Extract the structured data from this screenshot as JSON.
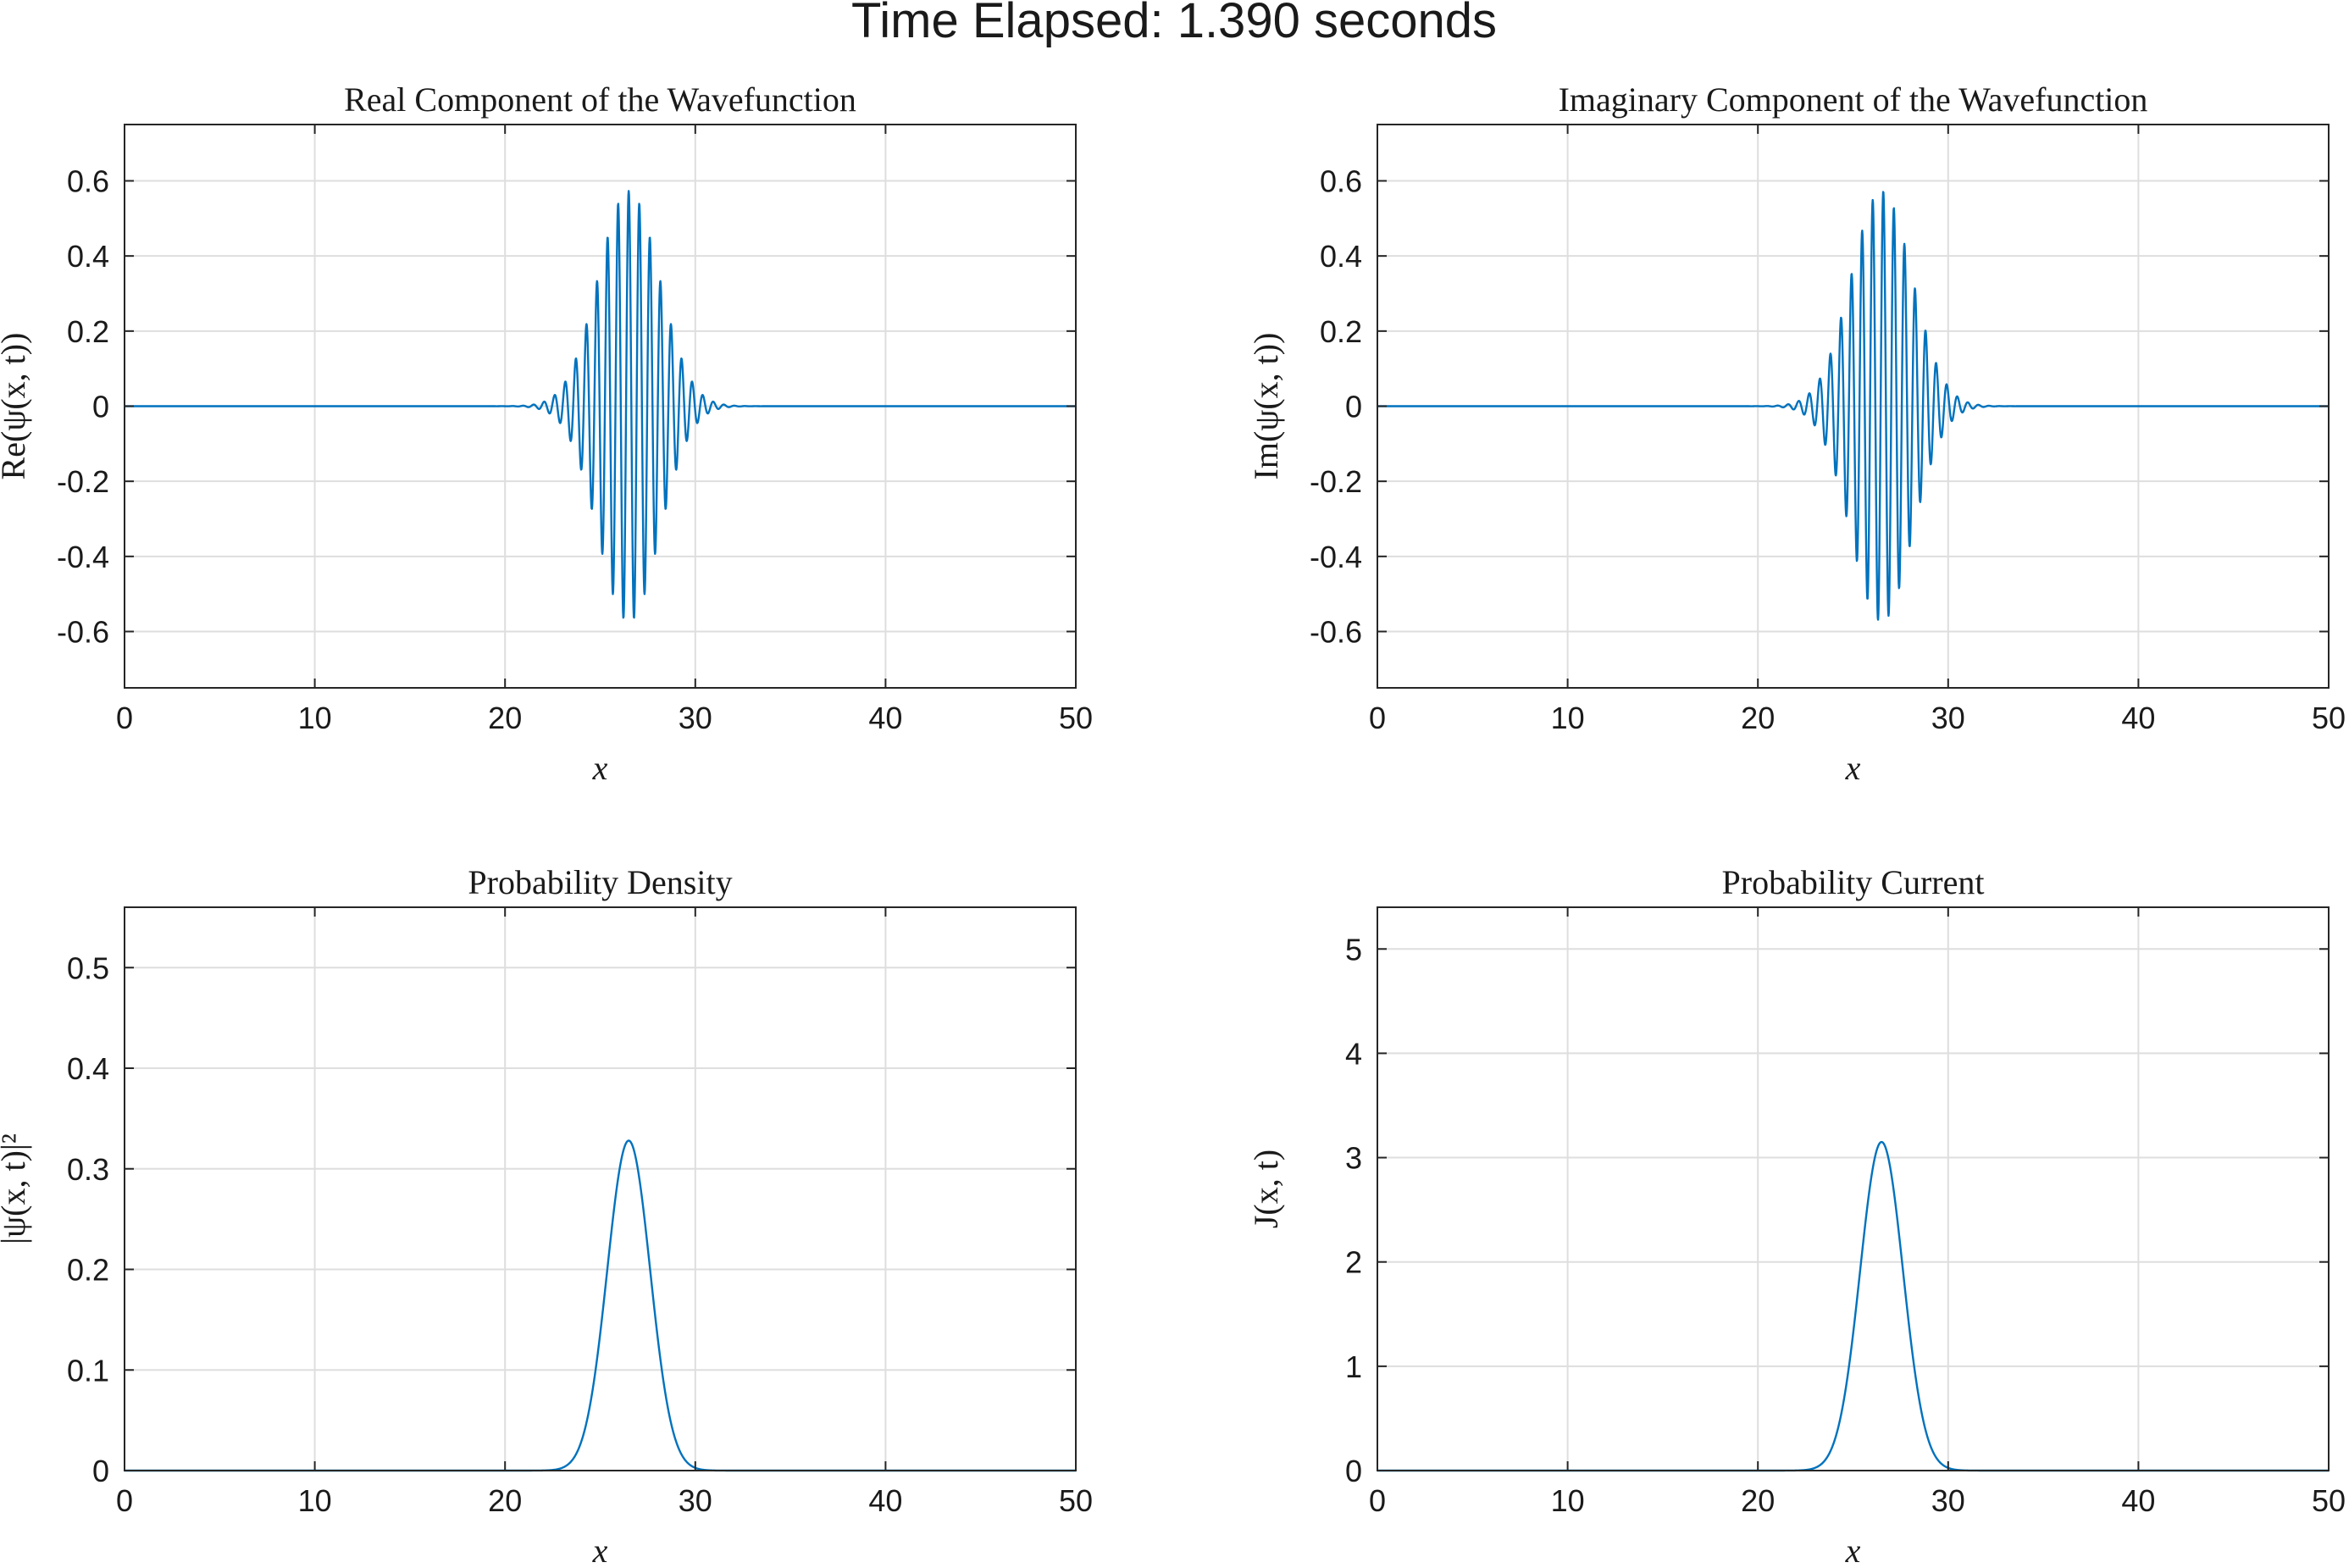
{
  "figure": {
    "title": "Time Elapsed: 1.390 seconds"
  },
  "chart_data": [
    {
      "id": "real",
      "type": "line",
      "title": "Real Component of the Wavefunction",
      "xlabel": "x",
      "ylabel": "Re(ψ(x, t))",
      "xlim": [
        0,
        50
      ],
      "ylim": [
        -0.75,
        0.75
      ],
      "xticks": [
        0,
        10,
        20,
        30,
        40,
        50
      ],
      "yticks": [
        -0.6,
        -0.4,
        -0.2,
        0,
        0.2,
        0.4,
        0.6
      ],
      "ytick_labels": [
        "-0.6",
        "-0.4",
        "-0.2",
        "0",
        "0.2",
        "0.4",
        "0.6"
      ],
      "grid": true,
      "series": [
        {
          "kind": "wavepacket-real",
          "center": 26.5,
          "width": 1.6,
          "amplitude": 0.573,
          "wavenumber": 11.3,
          "phase": 0.0,
          "color": "#0072bd"
        }
      ]
    },
    {
      "id": "imag",
      "type": "line",
      "title": "Imaginary Component of the Wavefunction",
      "xlabel": "x",
      "ylabel": "Im(ψ(x, t))",
      "xlim": [
        0,
        50
      ],
      "ylim": [
        -0.75,
        0.75
      ],
      "xticks": [
        0,
        10,
        20,
        30,
        40,
        50
      ],
      "yticks": [
        -0.6,
        -0.4,
        -0.2,
        0,
        0.2,
        0.4,
        0.6
      ],
      "ytick_labels": [
        "-0.6",
        "-0.4",
        "-0.2",
        "0",
        "0.2",
        "0.4",
        "0.6"
      ],
      "grid": true,
      "series": [
        {
          "kind": "wavepacket-imag",
          "center": 26.5,
          "width": 1.6,
          "amplitude": 0.573,
          "wavenumber": 11.3,
          "phase": 0.0,
          "color": "#0072bd"
        }
      ]
    },
    {
      "id": "density",
      "type": "line",
      "title": "Probability Density",
      "xlabel": "x",
      "ylabel": "|ψ(x, t)|²",
      "xlim": [
        0,
        50
      ],
      "ylim": [
        0,
        0.56
      ],
      "xticks": [
        0,
        10,
        20,
        30,
        40,
        50
      ],
      "yticks": [
        0,
        0.1,
        0.2,
        0.3,
        0.4,
        0.5
      ],
      "ytick_labels": [
        "0",
        "0.1",
        "0.2",
        "0.3",
        "0.4",
        "0.5"
      ],
      "grid": true,
      "series": [
        {
          "kind": "gaussian",
          "center": 26.5,
          "sigma": 1.13,
          "amplitude": 0.328,
          "color": "#0072bd"
        }
      ]
    },
    {
      "id": "current",
      "type": "line",
      "title": "Probability Current",
      "xlabel": "x",
      "ylabel": "J(x, t)",
      "xlim": [
        0,
        50
      ],
      "ylim": [
        0,
        5.4
      ],
      "xticks": [
        0,
        10,
        20,
        30,
        40,
        50
      ],
      "yticks": [
        0,
        1,
        2,
        3,
        4,
        5
      ],
      "ytick_labels": [
        "0",
        "1",
        "2",
        "3",
        "4",
        "5"
      ],
      "grid": true,
      "series": [
        {
          "kind": "gaussian",
          "center": 26.5,
          "sigma": 1.13,
          "amplitude": 3.15,
          "color": "#0072bd"
        }
      ]
    }
  ]
}
